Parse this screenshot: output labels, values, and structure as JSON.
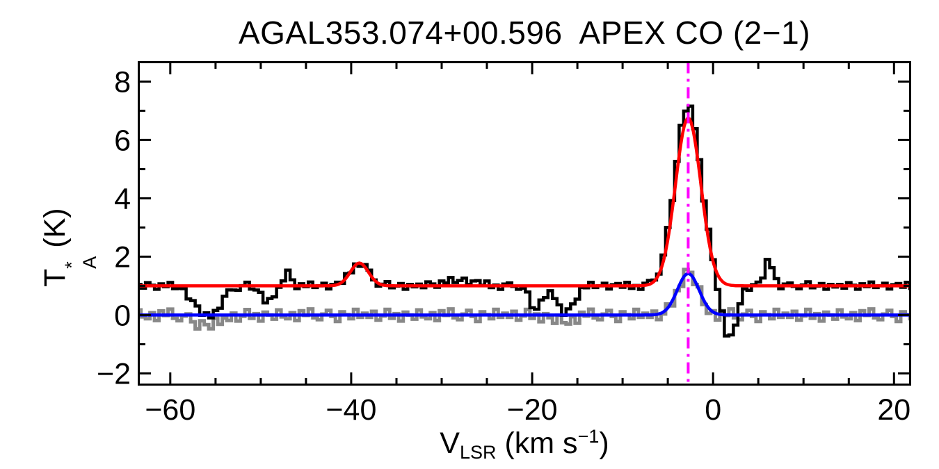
{
  "chart_data": {
    "type": "line",
    "title": "AGAL353.074+00.596  APEX CO (2−1)",
    "xlabel": {
      "base": "V",
      "sub": "LSR",
      "mid": " (km s",
      "sup": "−1",
      "end": ")"
    },
    "ylabel": {
      "base": "T",
      "sup": "*",
      "sub": "A",
      "end": " (K)"
    },
    "axes": {
      "x_range": [
        -63.6,
        21.9
      ],
      "y_range": [
        -2.42,
        8.7
      ],
      "x_major_ticks": [
        -60,
        -40,
        -20,
        0,
        20
      ],
      "x_tick_labels": [
        "−60",
        "−40",
        "−20",
        "0",
        "20"
      ],
      "x_minor_step": 5,
      "y_major_ticks": [
        -2,
        0,
        2,
        4,
        6,
        8
      ],
      "y_tick_labels": [
        "−2",
        "0",
        "2",
        "4",
        "6",
        "8"
      ],
      "y_minor_step": 1,
      "grid": false,
      "frame_color": "#000000"
    },
    "channels": {
      "start": -63.5,
      "step": 0.5,
      "count": 172
    },
    "noise_pattern": [
      0.05,
      -0.08,
      0.11,
      0.02,
      -0.12,
      0.07,
      -0.03,
      0.13,
      -0.06,
      0.0,
      0.09,
      -0.11,
      0.04,
      0.08,
      -0.05,
      0.12,
      -0.09,
      0.01,
      -0.13,
      0.06,
      0.1,
      -0.02,
      -0.1,
      0.03,
      0.14,
      -0.07,
      -0.01,
      0.08,
      -0.12,
      0.05,
      -0.04
    ],
    "series": [
      {
        "name": "residual-spectrum",
        "style": "histogram",
        "color": "#888888",
        "width": 5,
        "baseline": 0.0,
        "noise_scale": -1.6,
        "noise_phase": 11,
        "gaussians": [
          [
            -55.8,
            -0.35,
            1.5
          ],
          [
            -16.5,
            -0.2,
            1.2
          ],
          [
            -2.75,
            1.5,
            1.1
          ]
        ]
      },
      {
        "name": "observed-spectrum-offset",
        "style": "histogram",
        "color": "#000000",
        "width": 4.5,
        "baseline": 1.0,
        "noise_scale": 1.0,
        "noise_phase": 0,
        "gaussians": [
          [
            -55.9,
            -1.05,
            1.4
          ],
          [
            -49.2,
            -0.5,
            0.8
          ],
          [
            -47.1,
            0.45,
            0.45
          ],
          [
            -39.1,
            0.8,
            1.0
          ],
          [
            -28.0,
            0.18,
            1.8
          ],
          [
            -19.6,
            -0.8,
            0.7
          ],
          [
            -16.3,
            -0.95,
            0.9
          ],
          [
            -2.75,
            6.2,
            1.45
          ],
          [
            1.8,
            -1.9,
            0.8
          ],
          [
            6.2,
            0.85,
            0.5
          ]
        ]
      }
    ],
    "fits": [
      {
        "name": "gaussian-fit-offset",
        "color": "#FF0000",
        "width": 4.5,
        "baseline": 1.0,
        "gaussians": [
          [
            -39.1,
            0.78,
            1.0
          ],
          [
            -2.75,
            5.75,
            1.4
          ]
        ]
      },
      {
        "name": "gaussian-fit-residual",
        "color": "#0000FF",
        "width": 4.5,
        "baseline": 0.0,
        "gaussians": [
          [
            -2.75,
            1.42,
            1.2
          ]
        ]
      }
    ],
    "marker": {
      "velocity": -2.75,
      "color": "#FF00FF",
      "width": 4,
      "dash": "16 8 4 8"
    }
  }
}
